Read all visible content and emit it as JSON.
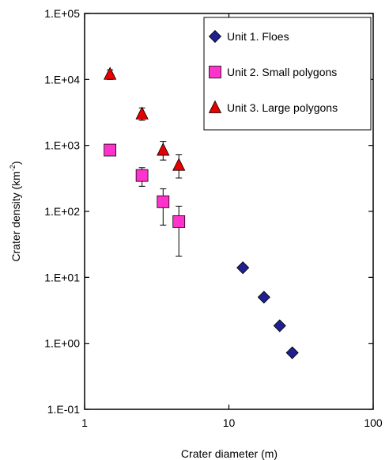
{
  "chart_data": {
    "type": "scatter",
    "x_scale": "log",
    "y_scale": "log",
    "xlabel": "Crater diameter (m)",
    "ylabel_main": "Crater density (km",
    "ylabel_sup": "-2",
    "ylabel_close": ")",
    "xlim": [
      1,
      100
    ],
    "ylim": [
      0.1,
      100000
    ],
    "x_ticks": [
      1,
      10,
      100
    ],
    "x_tick_labels": [
      "1",
      "10",
      "100"
    ],
    "y_ticks": [
      0.1,
      1,
      10,
      100,
      1000,
      10000,
      100000
    ],
    "y_tick_labels": [
      "1.E-01",
      "1.E+00",
      "1.E+01",
      "1.E+02",
      "1.E+03",
      "1.E+04",
      "1.E+05"
    ],
    "grid": false,
    "legend_position": "top-right",
    "series": [
      {
        "name": "Unit 1. Floes",
        "marker": "diamond",
        "color": "#1f1f8f",
        "points": [
          {
            "x": 12.5,
            "y": 14
          },
          {
            "x": 17.5,
            "y": 5
          },
          {
            "x": 22.5,
            "y": 1.85
          },
          {
            "x": 27.5,
            "y": 0.72
          }
        ]
      },
      {
        "name": "Unit 2. Small polygons",
        "marker": "square",
        "color": "#ff33cc",
        "points": [
          {
            "x": 1.5,
            "y": 850
          },
          {
            "x": 2.5,
            "y": 350,
            "err_low": 240,
            "err_high": 460
          },
          {
            "x": 3.5,
            "y": 140,
            "err_low": 62,
            "err_high": 220
          },
          {
            "x": 4.5,
            "y": 70,
            "err_low": 21,
            "err_high": 120
          }
        ]
      },
      {
        "name": "Unit 3. Large polygons",
        "marker": "triangle",
        "color": "#e60000",
        "points": [
          {
            "x": 1.5,
            "y": 12000,
            "err_low": 10000,
            "err_high": 14000
          },
          {
            "x": 2.5,
            "y": 3000,
            "err_low": 2400,
            "err_high": 3700
          },
          {
            "x": 3.5,
            "y": 850,
            "err_low": 600,
            "err_high": 1150
          },
          {
            "x": 4.5,
            "y": 500,
            "err_low": 320,
            "err_high": 720
          }
        ]
      }
    ]
  }
}
